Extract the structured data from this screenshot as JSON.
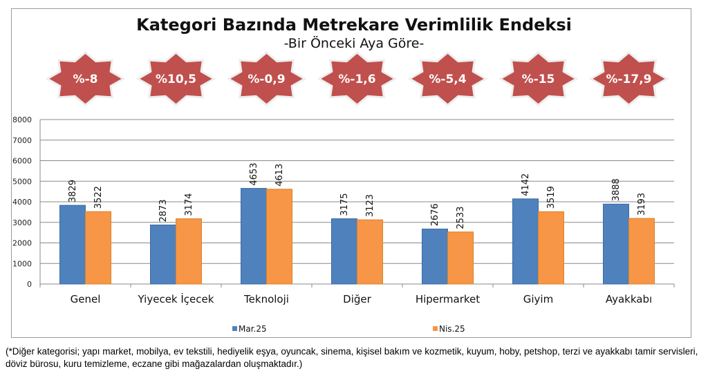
{
  "chart_data": {
    "type": "bar",
    "title": "Kategori Bazında Metrekare Verimlilik Endeksi",
    "subtitle": "-Bir Önceki Aya Göre-",
    "categories": [
      "Genel",
      "Yiyecek İçecek",
      "Teknoloji",
      "Diğer",
      "Hipermarket",
      "Giyim",
      "Ayakkabı"
    ],
    "changes": [
      "%-8",
      "%10,5",
      "%-0,9",
      "%-1,6",
      "%-5,4",
      "%-15",
      "%-17,9"
    ],
    "series": [
      {
        "name": "Mar.25",
        "color": "#4F81BD",
        "values": [
          3829,
          2873,
          4653,
          3175,
          2676,
          4142,
          3888
        ]
      },
      {
        "name": "Nis.25",
        "color": "#F79646",
        "values": [
          3522,
          3174,
          4613,
          3123,
          2533,
          3519,
          3193
        ]
      }
    ],
    "ylim": [
      0,
      8000
    ],
    "yticks": [
      0,
      1000,
      2000,
      3000,
      4000,
      5000,
      6000,
      7000,
      8000
    ],
    "grid": true,
    "legend": "bottom",
    "badge_color": "#C0504D"
  },
  "footnote": "(*Diğer kategorisi; yapı market, mobilya, ev tekstili, hediyelik eşya, oyuncak, sinema, kişisel bakım ve kozmetik, kuyum, hoby, petshop, terzi ve ayakkabı tamir servisleri, döviz bürosu, kuru temizleme, eczane gibi mağazalardan oluşmaktadır.)"
}
